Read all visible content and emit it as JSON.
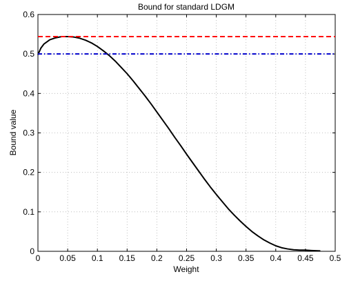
{
  "chart_data": {
    "type": "line",
    "title": "Bound for standard LDGM",
    "xlabel": "Weight",
    "ylabel": "Bound value",
    "xlim": [
      0,
      0.5
    ],
    "ylim": [
      0,
      0.6
    ],
    "x_ticks": [
      "0",
      "0.05",
      "0.1",
      "0.15",
      "0.2",
      "0.25",
      "0.3",
      "0.35",
      "0.4",
      "0.45",
      "0.5"
    ],
    "y_ticks": [
      "0",
      "0.1",
      "0.2",
      "0.3",
      "0.4",
      "0.5",
      "0.6"
    ],
    "grid": true,
    "series": [
      {
        "style": "solid",
        "color": "#000000",
        "points": [
          [
            0.0,
            0.498
          ],
          [
            0.005,
            0.515
          ],
          [
            0.01,
            0.525
          ],
          [
            0.02,
            0.536
          ],
          [
            0.03,
            0.541
          ],
          [
            0.04,
            0.544
          ],
          [
            0.05,
            0.544
          ],
          [
            0.06,
            0.543
          ],
          [
            0.07,
            0.54
          ],
          [
            0.08,
            0.535
          ],
          [
            0.09,
            0.528
          ],
          [
            0.1,
            0.519
          ],
          [
            0.11,
            0.508
          ],
          [
            0.12,
            0.496
          ],
          [
            0.13,
            0.482
          ],
          [
            0.14,
            0.466
          ],
          [
            0.15,
            0.45
          ],
          [
            0.16,
            0.432
          ],
          [
            0.17,
            0.413
          ],
          [
            0.18,
            0.394
          ],
          [
            0.19,
            0.374
          ],
          [
            0.2,
            0.353
          ],
          [
            0.21,
            0.332
          ],
          [
            0.22,
            0.311
          ],
          [
            0.23,
            0.289
          ],
          [
            0.24,
            0.268
          ],
          [
            0.25,
            0.246
          ],
          [
            0.26,
            0.225
          ],
          [
            0.27,
            0.204
          ],
          [
            0.28,
            0.183
          ],
          [
            0.29,
            0.163
          ],
          [
            0.3,
            0.144
          ],
          [
            0.31,
            0.126
          ],
          [
            0.32,
            0.108
          ],
          [
            0.33,
            0.092
          ],
          [
            0.34,
            0.077
          ],
          [
            0.35,
            0.063
          ],
          [
            0.36,
            0.05
          ],
          [
            0.37,
            0.039
          ],
          [
            0.38,
            0.029
          ],
          [
            0.39,
            0.021
          ],
          [
            0.4,
            0.014
          ],
          [
            0.41,
            0.009
          ],
          [
            0.42,
            0.006
          ],
          [
            0.43,
            0.004
          ],
          [
            0.44,
            0.003
          ],
          [
            0.45,
            0.003
          ],
          [
            0.46,
            0.002
          ],
          [
            0.475,
            0.001
          ]
        ]
      },
      {
        "style": "dashed",
        "color": "#ff0000",
        "points": [
          [
            0,
            0.544
          ],
          [
            0.5,
            0.544
          ]
        ]
      },
      {
        "style": "dashdot",
        "color": "#0000cc",
        "points": [
          [
            0,
            0.5
          ],
          [
            0.5,
            0.5
          ]
        ]
      }
    ]
  }
}
